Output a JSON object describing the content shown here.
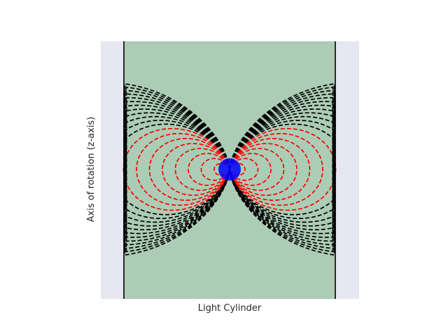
{
  "xlabel": "Light Cylinder",
  "ylabel": "Axis of rotation (z-axis)",
  "colors": {
    "axes_background": "#e6e7f0",
    "light_cylinder_fill": "#acccb5",
    "light_cylinder_edge": "#000000",
    "open_field_lines": "#000000",
    "closed_field_lines": "#ff0000",
    "star": "#0000ff"
  },
  "diagram": {
    "star": {
      "label": "",
      "color": "#0000ff"
    },
    "field_line_styles": {
      "closed": "dashed red",
      "open": "dashed black"
    },
    "closed_line_count_per_side": 8,
    "open_line_count_per_side": 12
  }
}
